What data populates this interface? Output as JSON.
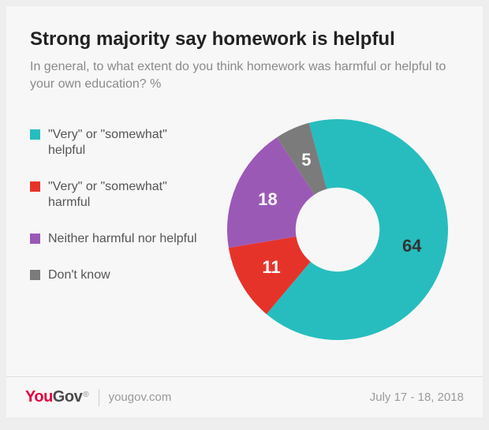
{
  "title": "Strong majority say homework is helpful",
  "subtitle": "In general, to what extent do you think homework was harmful or helpful to your own education? %",
  "chart": {
    "type": "donut",
    "inner_radius_ratio": 0.38,
    "background": "#f7f7f7",
    "start_angle_deg": -15,
    "label_fontsize": 22,
    "label_fontweight": 700,
    "series": [
      {
        "label": "\"Very\" or \"somewhat\" helpful",
        "value": 64,
        "color": "#27bdbe",
        "text_color": "#333333"
      },
      {
        "label": "\"Very\" or \"somewhat\" harmful",
        "value": 11,
        "color": "#e6332a",
        "text_color": "#ffffff"
      },
      {
        "label": "Neither harmful nor helpful",
        "value": 18,
        "color": "#9b59b6",
        "text_color": "#ffffff"
      },
      {
        "label": "Don't know",
        "value": 5,
        "color": "#7b7b7b",
        "text_color": "#ffffff"
      }
    ]
  },
  "legend": {
    "fontsize": 16,
    "swatch_size": 13,
    "text_color": "#555555"
  },
  "footer": {
    "brand_a": "You",
    "brand_b": "Gov",
    "brand_a_color": "#e6003c",
    "brand_b_color": "#4a4a4a",
    "url": "yougov.com",
    "date": "July 17 - 18, 2018"
  }
}
